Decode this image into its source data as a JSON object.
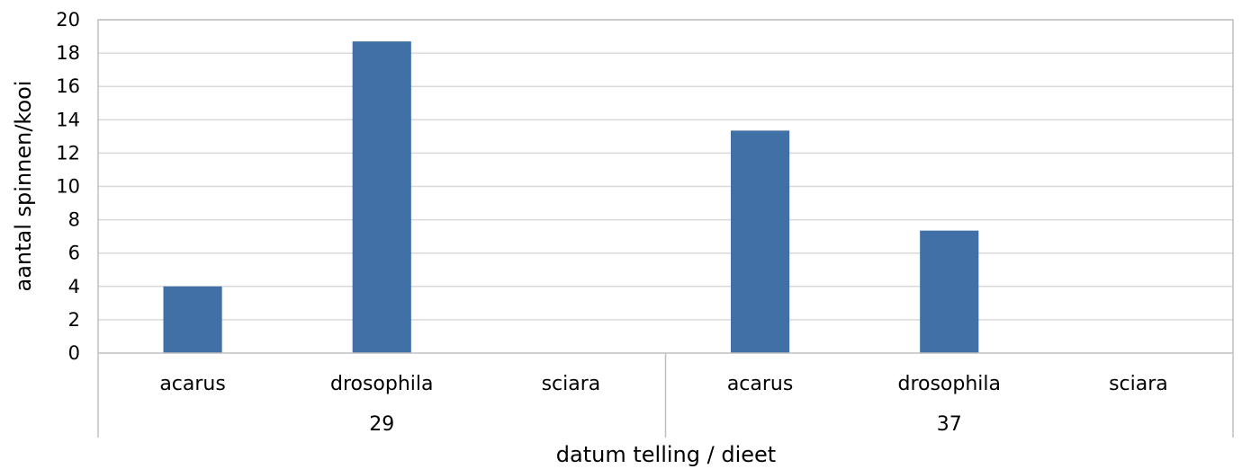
{
  "chart_data": {
    "type": "bar",
    "title": "",
    "xlabel": "datum telling / dieet",
    "ylabel": "aantal spinnen/kooi",
    "ylim": [
      0,
      20
    ],
    "ytick_step": 2,
    "yticks": [
      "0",
      "2",
      "4",
      "6",
      "8",
      "10",
      "12",
      "14",
      "16",
      "18",
      "20"
    ],
    "grid": true,
    "legend": "none",
    "groups": [
      {
        "label": "29",
        "categories": [
          "acarus",
          "drosophila",
          "sciara"
        ],
        "values": [
          4,
          18.7,
          0
        ]
      },
      {
        "label": "37",
        "categories": [
          "acarus",
          "drosophila",
          "sciara"
        ],
        "values": [
          13.35,
          7.35,
          0
        ]
      }
    ],
    "colors": {
      "bar": "#4170a6",
      "grid": "#d9d9d9",
      "axis": "#bfbfbf"
    }
  }
}
